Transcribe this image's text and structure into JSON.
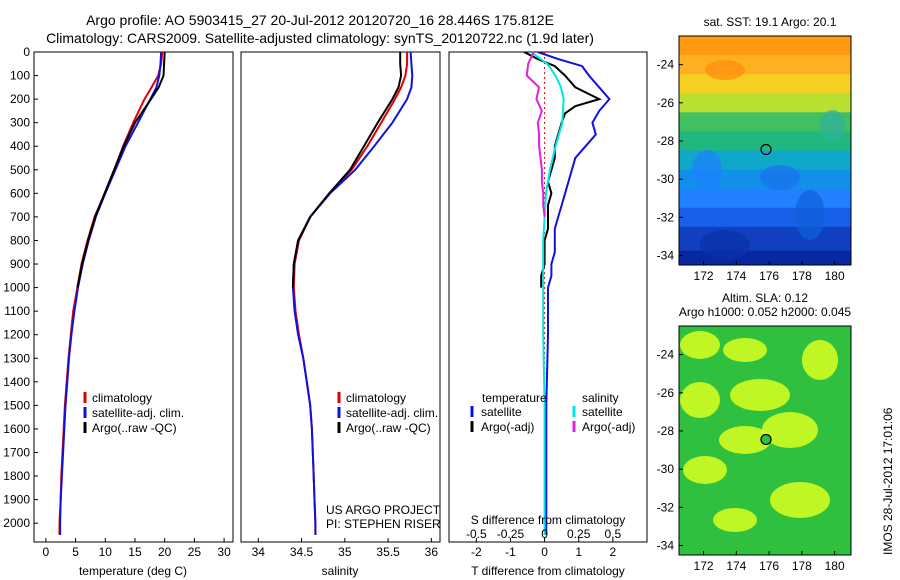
{
  "title": {
    "line1": "Argo profile: AO 5903415_27 20-Jul-2012 20120720_16 28.446S 175.812E",
    "line2": "Climatology: CARS2009. Satellite-adjusted climatology: synTS_20120722.nc (1.9d later)"
  },
  "credits": {
    "project": "US ARGO PROJECT",
    "pi": "PI: STEPHEN RISER"
  },
  "timestamp": "IMOS 28-Jul-2012 17:01:06",
  "colors": {
    "climatology": "#e00000",
    "satellite": "#1010e0",
    "argo": "#000000",
    "sal_satellite": "#00e5e5",
    "sal_argo": "#e020e0",
    "axes": "#000000"
  },
  "chart_data": [
    {
      "type": "line",
      "name": "temperature",
      "xlabel": "temperature (deg C)",
      "ylabel": "",
      "xlim": [
        -2,
        31.5
      ],
      "ylim": [
        2080,
        0
      ],
      "xticks": [
        0,
        5,
        10,
        15,
        20,
        25,
        30
      ],
      "yticks": [
        0,
        100,
        200,
        300,
        400,
        500,
        600,
        700,
        800,
        900,
        1000,
        1100,
        1200,
        1300,
        1400,
        1500,
        1600,
        1700,
        1800,
        1900,
        2000
      ],
      "legend": {
        "position": "lower-right",
        "entries": [
          "climatology",
          "satellite-adj. clim.",
          "Argo(..raw -QC)"
        ]
      },
      "series": [
        {
          "name": "climatology",
          "color": "#e00000",
          "depth": [
            0,
            50,
            100,
            150,
            200,
            300,
            400,
            500,
            600,
            700,
            800,
            900,
            1000,
            1100,
            1200,
            1300,
            1400,
            1500,
            1600,
            1700,
            1800,
            1900,
            2000,
            2050
          ],
          "values": [
            19.6,
            19.4,
            18.9,
            17.8,
            16.6,
            14.7,
            13.0,
            11.5,
            9.9,
            8.2,
            7.0,
            6.0,
            5.3,
            4.6,
            4.2,
            3.8,
            3.5,
            3.2,
            3.0,
            2.8,
            2.6,
            2.5,
            2.3,
            2.3
          ]
        },
        {
          "name": "satellite-adj. clim.",
          "color": "#1010e0",
          "depth": [
            0,
            50,
            100,
            150,
            200,
            300,
            400,
            500,
            600,
            700,
            800,
            900,
            1000,
            1100,
            1200,
            1300,
            1400,
            1500,
            1600,
            1700,
            1800,
            1900,
            2000,
            2050
          ],
          "values": [
            19.4,
            19.3,
            19.1,
            18.6,
            17.6,
            15.5,
            13.4,
            11.7,
            10.0,
            8.4,
            7.2,
            6.2,
            5.4,
            4.8,
            4.3,
            3.9,
            3.6,
            3.3,
            3.1,
            2.9,
            2.7,
            2.5,
            2.4,
            2.4
          ]
        },
        {
          "name": "Argo(..raw -QC)",
          "color": "#000000",
          "depth": [
            0,
            50,
            100,
            150,
            200,
            300,
            400,
            500,
            600,
            700,
            800,
            900,
            1000
          ],
          "values": [
            20.0,
            19.9,
            19.8,
            19.0,
            17.7,
            15.0,
            13.1,
            11.5,
            9.9,
            8.3,
            7.1,
            6.1,
            5.3
          ]
        }
      ]
    },
    {
      "type": "line",
      "name": "salinity",
      "xlabel": "salinity",
      "ylabel": "",
      "xlim": [
        33.8,
        36.1
      ],
      "ylim": [
        2080,
        0
      ],
      "xticks": [
        34,
        34.5,
        35,
        35.5,
        36
      ],
      "legend": {
        "position": "lower-right",
        "entries": [
          "climatology",
          "satellite-adj. clim.",
          "Argo(..raw -QC)"
        ]
      },
      "series": [
        {
          "name": "climatology",
          "color": "#e00000",
          "depth": [
            0,
            50,
            100,
            150,
            200,
            300,
            400,
            500,
            600,
            700,
            800,
            900,
            1000,
            1100,
            1200,
            1300,
            1400,
            1500,
            1600,
            1700,
            1800,
            1900,
            2000,
            2050
          ],
          "values": [
            35.72,
            35.72,
            35.7,
            35.65,
            35.58,
            35.42,
            35.26,
            35.08,
            34.82,
            34.6,
            34.47,
            34.42,
            34.41,
            34.43,
            34.47,
            34.52,
            34.56,
            34.6,
            34.62,
            34.63,
            34.64,
            34.65,
            34.66,
            34.66
          ]
        },
        {
          "name": "satellite-adj. clim.",
          "color": "#1010e0",
          "depth": [
            0,
            50,
            100,
            150,
            200,
            300,
            400,
            500,
            600,
            700,
            800,
            900,
            1000,
            1100,
            1200,
            1300,
            1400,
            1500,
            1600,
            1700,
            1800,
            1900,
            2000,
            2050
          ],
          "values": [
            35.76,
            35.77,
            35.78,
            35.77,
            35.72,
            35.55,
            35.34,
            35.12,
            34.83,
            34.6,
            34.46,
            34.41,
            34.4,
            34.42,
            34.46,
            34.52,
            34.56,
            34.6,
            34.62,
            34.63,
            34.64,
            34.65,
            34.66,
            34.66
          ]
        },
        {
          "name": "Argo(..raw -QC)",
          "color": "#000000",
          "depth": [
            0,
            50,
            100,
            150,
            200,
            300,
            400,
            500,
            600,
            700,
            800,
            900,
            1000
          ],
          "values": [
            35.64,
            35.64,
            35.65,
            35.62,
            35.55,
            35.38,
            35.22,
            35.06,
            34.82,
            34.6,
            34.46,
            34.41,
            34.4
          ]
        }
      ]
    },
    {
      "type": "line",
      "name": "difference",
      "xlabel": "T difference from climatology",
      "xlabel_top": "S difference from climatology",
      "xlim": [
        -2.8,
        3.0
      ],
      "xticks": [
        -2,
        -1,
        0,
        1,
        2
      ],
      "xticks_top": [
        -0.5,
        -0.25,
        0,
        0.25,
        0.5
      ],
      "xlim_top": [
        -0.7,
        0.75
      ],
      "ylim": [
        2080,
        0
      ],
      "legend": {
        "position": "lower-center",
        "temperature_header": "temperature",
        "salinity_header": "salinity",
        "temperature_entries": [
          "satellite",
          "Argo(-adj)"
        ],
        "salinity_entries": [
          "satellite",
          "Argo(-adj)"
        ]
      },
      "series": [
        {
          "name": "temperature satellite",
          "color": "#1010e0",
          "axis": "T",
          "depth": [
            0,
            30,
            60,
            100,
            150,
            200,
            250,
            300,
            350,
            400,
            450,
            500,
            550,
            600,
            650,
            700,
            750,
            800,
            850,
            900,
            950,
            1000,
            1200,
            1500,
            2050
          ],
          "values": [
            -0.2,
            0.4,
            1.1,
            1.3,
            1.6,
            1.9,
            1.6,
            1.4,
            1.5,
            1.2,
            0.9,
            0.8,
            0.7,
            0.6,
            0.5,
            0.4,
            0.3,
            0.3,
            0.3,
            0.2,
            0.2,
            0.1,
            0.1,
            0.05,
            0.05
          ]
        },
        {
          "name": "temperature Argo(-adj)",
          "color": "#000000",
          "axis": "T",
          "depth": [
            0,
            30,
            60,
            100,
            150,
            200,
            230,
            260,
            300,
            350,
            400,
            450,
            500,
            550,
            600,
            650,
            700,
            750,
            800,
            850,
            900,
            950,
            1000
          ],
          "values": [
            -0.6,
            -0.2,
            0.3,
            0.6,
            0.9,
            1.6,
            0.9,
            0.6,
            0.5,
            0.4,
            0.3,
            0.3,
            0.2,
            0.1,
            0.2,
            0.1,
            0.1,
            0.1,
            0.0,
            0.0,
            0.0,
            -0.1,
            -0.1
          ]
        },
        {
          "name": "salinity satellite",
          "color": "#00e5e5",
          "axis": "S",
          "depth": [
            0,
            50,
            100,
            150,
            200,
            300,
            400,
            500,
            600,
            700,
            800,
            900,
            1000,
            1200,
            1500,
            2050
          ],
          "values": [
            -0.1,
            0.02,
            0.08,
            0.12,
            0.14,
            0.13,
            0.08,
            0.04,
            0.01,
            0.0,
            -0.01,
            -0.01,
            -0.01,
            -0.01,
            0.0,
            0.0
          ]
        },
        {
          "name": "salinity Argo(-adj)",
          "color": "#e020e0",
          "axis": "S",
          "depth": [
            0,
            50,
            100,
            150,
            200,
            250,
            300,
            350,
            400,
            450,
            500,
            550,
            600,
            650,
            700
          ],
          "values": [
            -0.08,
            -0.12,
            -0.13,
            -0.04,
            -0.06,
            -0.02,
            -0.05,
            -0.04,
            -0.04,
            -0.03,
            -0.02,
            -0.02,
            -0.01,
            -0.01,
            0.0
          ]
        }
      ]
    },
    {
      "type": "heatmap",
      "name": "sst-map",
      "title": "sat. SST: 19.1 Argo: 20.1",
      "xlim": [
        170.5,
        181
      ],
      "ylim": [
        -34.5,
        -22.5
      ],
      "xticks": [
        172,
        174,
        176,
        178,
        180
      ],
      "yticks": [
        -24,
        -26,
        -28,
        -30,
        -32,
        -34
      ],
      "colors_by_latitude": [
        {
          "lat": -23.0,
          "color": "#ff9a10"
        },
        {
          "lat": -24.0,
          "color": "#ffb020"
        },
        {
          "lat": -25.0,
          "color": "#f5d020"
        },
        {
          "lat": -26.0,
          "color": "#b8e030"
        },
        {
          "lat": -27.0,
          "color": "#40c060"
        },
        {
          "lat": -28.0,
          "color": "#20b880"
        },
        {
          "lat": -29.0,
          "color": "#10a8c8"
        },
        {
          "lat": -30.0,
          "color": "#1090e8"
        },
        {
          "lat": -31.0,
          "color": "#2080ff"
        },
        {
          "lat": -32.0,
          "color": "#1860e8"
        },
        {
          "lat": -33.0,
          "color": "#1040c0"
        },
        {
          "lat": -34.5,
          "color": "#0828a0"
        }
      ],
      "marker": {
        "lon": 175.812,
        "lat": -28.446
      }
    },
    {
      "type": "heatmap",
      "name": "sla-map",
      "title_line1": "Altim. SLA: 0.12",
      "title_line2": "Argo h1000: 0.052 h2000: 0.045",
      "xlim": [
        170.5,
        181
      ],
      "ylim": [
        -34.5,
        -22.5
      ],
      "xticks": [
        172,
        174,
        176,
        178,
        180
      ],
      "yticks": [
        -24,
        -26,
        -28,
        -30,
        -32,
        -34
      ],
      "base_color": "#30c040",
      "highlight_color": "#d8ff20",
      "marker": {
        "lon": 175.812,
        "lat": -28.446
      }
    }
  ]
}
